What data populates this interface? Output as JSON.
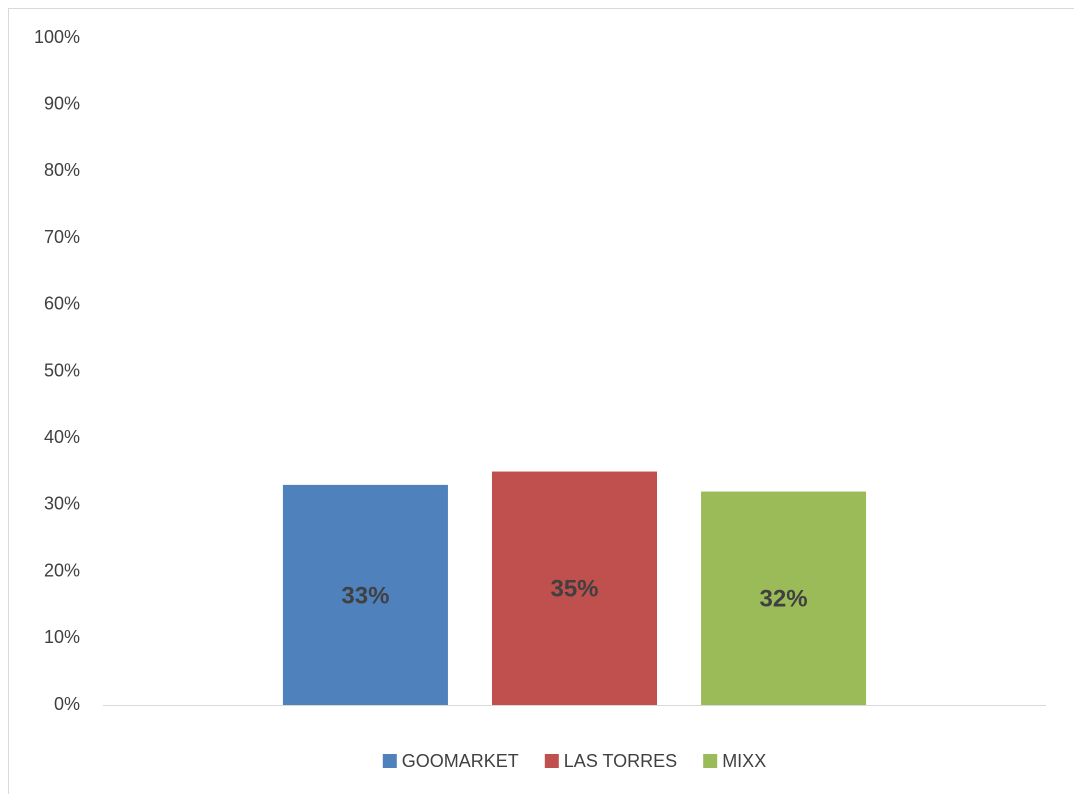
{
  "chart_data": {
    "type": "bar",
    "categories": [
      null
    ],
    "series": [
      {
        "name": "GOOMARKET",
        "color": "#4f81bd",
        "values": [
          33
        ],
        "value_labels": [
          "33%"
        ]
      },
      {
        "name": "LAS TORRES",
        "color": "#c0504d",
        "values": [
          35
        ],
        "value_labels": [
          "35%"
        ]
      },
      {
        "name": "MIXX",
        "color": "#9bbb59",
        "values": [
          32
        ],
        "value_labels": [
          "32%"
        ]
      }
    ],
    "ylim": [
      0,
      100
    ],
    "yticks": [
      {
        "value": 0,
        "label": "0%"
      },
      {
        "value": 10,
        "label": "10%"
      },
      {
        "value": 20,
        "label": "20%"
      },
      {
        "value": 30,
        "label": "30%"
      },
      {
        "value": 40,
        "label": "40%"
      },
      {
        "value": 50,
        "label": "50%"
      },
      {
        "value": 60,
        "label": "60%"
      },
      {
        "value": 70,
        "label": "70%"
      },
      {
        "value": 80,
        "label": "80%"
      },
      {
        "value": 90,
        "label": "90%"
      },
      {
        "value": 100,
        "label": "100%"
      }
    ],
    "grid": false,
    "legend": "bottom"
  }
}
